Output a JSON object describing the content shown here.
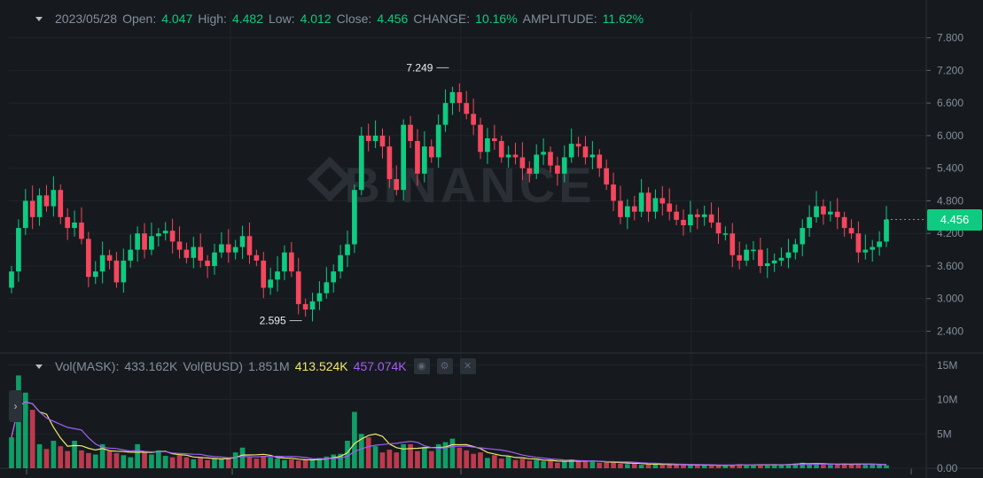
{
  "ohlc_bar": {
    "date": "2023/05/28",
    "open_label": "Open:",
    "open": "4.047",
    "high_label": "High:",
    "high": "4.482",
    "low_label": "Low:",
    "low": "4.012",
    "close_label": "Close:",
    "close": "4.456",
    "change_label": "CHANGE:",
    "change": "10.16%",
    "amplitude_label": "AMPLITUDE:",
    "amplitude": "11.62%"
  },
  "volume_bar": {
    "vol_label": "Vol(MASK):",
    "vol_value": "433.162K",
    "busd_label": "Vol(BUSD)",
    "busd_value": "1.851M",
    "ma1_value": "413.524K",
    "ma2_value": "457.074K",
    "eye_icon": "eye-icon",
    "gear_icon": "gear-icon",
    "close_icon": "close-icon"
  },
  "last_price_tag": "4.456",
  "watermark": "BINANCE",
  "colors": {
    "up": "#0ecb81",
    "down": "#f6465d",
    "ma1": "#f0e96a",
    "ma2": "#a25ff6",
    "bg": "#161a1e",
    "grid": "#1f242a"
  },
  "chart_data": {
    "type": "candlestick",
    "price_axis": {
      "ticks": [
        2.4,
        3.0,
        3.6,
        4.2,
        4.8,
        5.4,
        6.0,
        6.6,
        7.2,
        7.8
      ],
      "tick_labels": [
        "2.400",
        "3.000",
        "3.600",
        "4.200",
        "4.800",
        "5.400",
        "6.000",
        "6.600",
        "7.200",
        "7.800"
      ],
      "range": [
        2.0,
        8.3
      ]
    },
    "volume_axis": {
      "tick_labels": [
        "0.00",
        "5M",
        "10M",
        "15M"
      ],
      "ticks": [
        0,
        5,
        10,
        15
      ],
      "range": [
        0,
        16
      ]
    },
    "annotations": [
      {
        "label": "7.249",
        "value": 7.249
      },
      {
        "label": "2.595",
        "value": 2.595
      }
    ],
    "close": [
      3.5,
      4.3,
      4.8,
      4.5,
      4.9,
      4.7,
      5.0,
      4.5,
      4.3,
      4.4,
      4.1,
      3.4,
      3.5,
      3.8,
      3.7,
      3.3,
      3.7,
      3.9,
      4.2,
      3.9,
      4.15,
      4.2,
      4.25,
      4.05,
      3.9,
      3.75,
      3.95,
      3.7,
      3.6,
      3.85,
      4.0,
      3.85,
      3.95,
      4.15,
      3.8,
      3.7,
      3.2,
      3.35,
      3.5,
      3.85,
      3.5,
      2.9,
      2.8,
      2.95,
      3.1,
      3.3,
      3.5,
      3.8,
      4.0,
      5.0,
      6.0,
      5.9,
      6.0,
      5.8,
      5.2,
      5.0,
      6.2,
      5.9,
      5.3,
      5.8,
      5.6,
      6.2,
      6.6,
      6.8,
      6.6,
      6.4,
      6.2,
      5.7,
      5.95,
      5.9,
      5.6,
      5.65,
      5.6,
      5.4,
      5.3,
      5.65,
      5.7,
      5.45,
      5.3,
      5.6,
      5.85,
      5.8,
      5.6,
      5.65,
      5.4,
      5.1,
      4.8,
      4.5,
      4.7,
      4.6,
      4.95,
      4.6,
      4.85,
      4.75,
      4.6,
      4.45,
      4.35,
      4.55,
      4.5,
      4.55,
      4.4,
      4.2,
      4.2,
      3.8,
      3.7,
      3.9,
      3.9,
      3.6,
      3.65,
      3.7,
      3.75,
      3.85,
      4.0,
      4.3,
      4.5,
      4.7,
      4.55,
      4.6,
      4.5,
      4.3,
      4.2,
      3.85,
      3.9,
      3.95,
      4.05,
      4.456
    ],
    "volume": [
      4.5,
      13.5,
      11,
      8.5,
      3.5,
      2.8,
      4,
      3.2,
      2.5,
      4,
      2.6,
      2.2,
      2,
      3.5,
      2.5,
      2.2,
      1.9,
      1.6,
      3.5,
      2.5,
      2,
      2.6,
      1.8,
      1.6,
      1.9,
      1.6,
      1.3,
      1.5,
      1.2,
      1.5,
      1.3,
      1.5,
      2.3,
      3,
      1.6,
      1.4,
      1.8,
      1.6,
      1.4,
      1.2,
      1.3,
      1.1,
      1.2,
      1.3,
      1.5,
      1.7,
      2,
      2.1,
      4,
      8.2,
      5,
      4.5,
      3.2,
      2.3,
      2.7,
      2.3,
      3.5,
      3.5,
      2.5,
      3.1,
      2.5,
      3.5,
      3.8,
      4.3,
      3,
      2.6,
      2.1,
      2.3,
      1.5,
      1.9,
      1.4,
      1.8,
      1.2,
      1.4,
      1.1,
      1.2,
      1,
      1.1,
      0.8,
      1,
      1.3,
      1.1,
      0.9,
      1,
      0.8,
      0.8,
      0.9,
      0.7,
      0.6,
      0.7,
      0.5,
      0.6,
      0.6,
      0.5,
      0.5,
      0.5,
      0.6,
      0.4,
      0.4,
      0.5,
      0.4,
      0.4,
      0.4,
      0.5,
      0.6,
      0.5,
      0.4,
      0.5,
      0.5,
      0.6,
      0.5,
      0.6,
      0.7,
      0.8,
      0.6,
      0.7,
      0.5,
      0.5,
      0.6,
      0.7,
      0.5,
      0.7,
      0.5,
      0.6,
      0.5,
      0.43
    ]
  }
}
